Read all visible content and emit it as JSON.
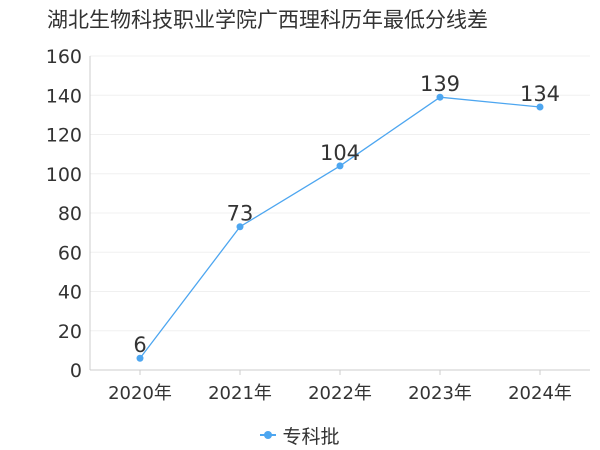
{
  "chart_data": {
    "type": "line",
    "title": "湖北生物科技职业学院广西理科历年最低分线差",
    "categories": [
      "2020年",
      "2021年",
      "2022年",
      "2023年",
      "2024年"
    ],
    "series": [
      {
        "name": "专科批",
        "values": [
          6,
          73,
          104,
          139,
          134
        ]
      }
    ],
    "ylim": [
      0,
      160
    ],
    "yticks": [
      0,
      20,
      40,
      60,
      80,
      100,
      120,
      140,
      160
    ],
    "grid": true,
    "legend": "bottom-center",
    "colors": {
      "series": "#4da6f0",
      "axis": "#cccccc",
      "grid": "#f0f0f0",
      "text": "#333333"
    }
  }
}
